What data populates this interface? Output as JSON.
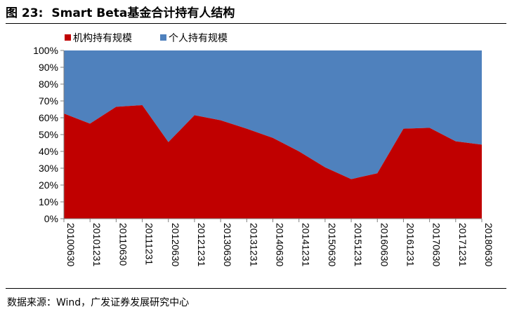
{
  "figure": {
    "label": "图 23:",
    "title": "Smart Beta基金合计持有人结构"
  },
  "source": "数据来源：Wind，广发证券发展研究中心",
  "colors": {
    "institution": "#C00000",
    "individual": "#4F81BD"
  },
  "chart_data": {
    "type": "area",
    "stacked": true,
    "x": [
      "20100630",
      "20101231",
      "20110630",
      "20111231",
      "20120630",
      "20121231",
      "20130630",
      "20131231",
      "20140630",
      "20141231",
      "20150630",
      "20151231",
      "20160630",
      "20161231",
      "20170630",
      "20171231",
      "20180630"
    ],
    "series": [
      {
        "name": "机构持有规模",
        "values": [
          62.5,
          56.5,
          66.5,
          67.5,
          45.5,
          61.5,
          58.5,
          53.5,
          48,
          40,
          30.5,
          23.5,
          27,
          53.5,
          54,
          46,
          44
        ]
      },
      {
        "name": "个人持有规模",
        "values": [
          37.5,
          43.5,
          33.5,
          32.5,
          54.5,
          38.5,
          41.5,
          46.5,
          52,
          60,
          69.5,
          76.5,
          73,
          46.5,
          46,
          54,
          56
        ]
      }
    ],
    "yticks": [
      "0%",
      "10%",
      "20%",
      "30%",
      "40%",
      "50%",
      "60%",
      "70%",
      "80%",
      "90%",
      "100%"
    ],
    "ylim": [
      0,
      100
    ],
    "grid": false,
    "legend_position": "top-left"
  }
}
